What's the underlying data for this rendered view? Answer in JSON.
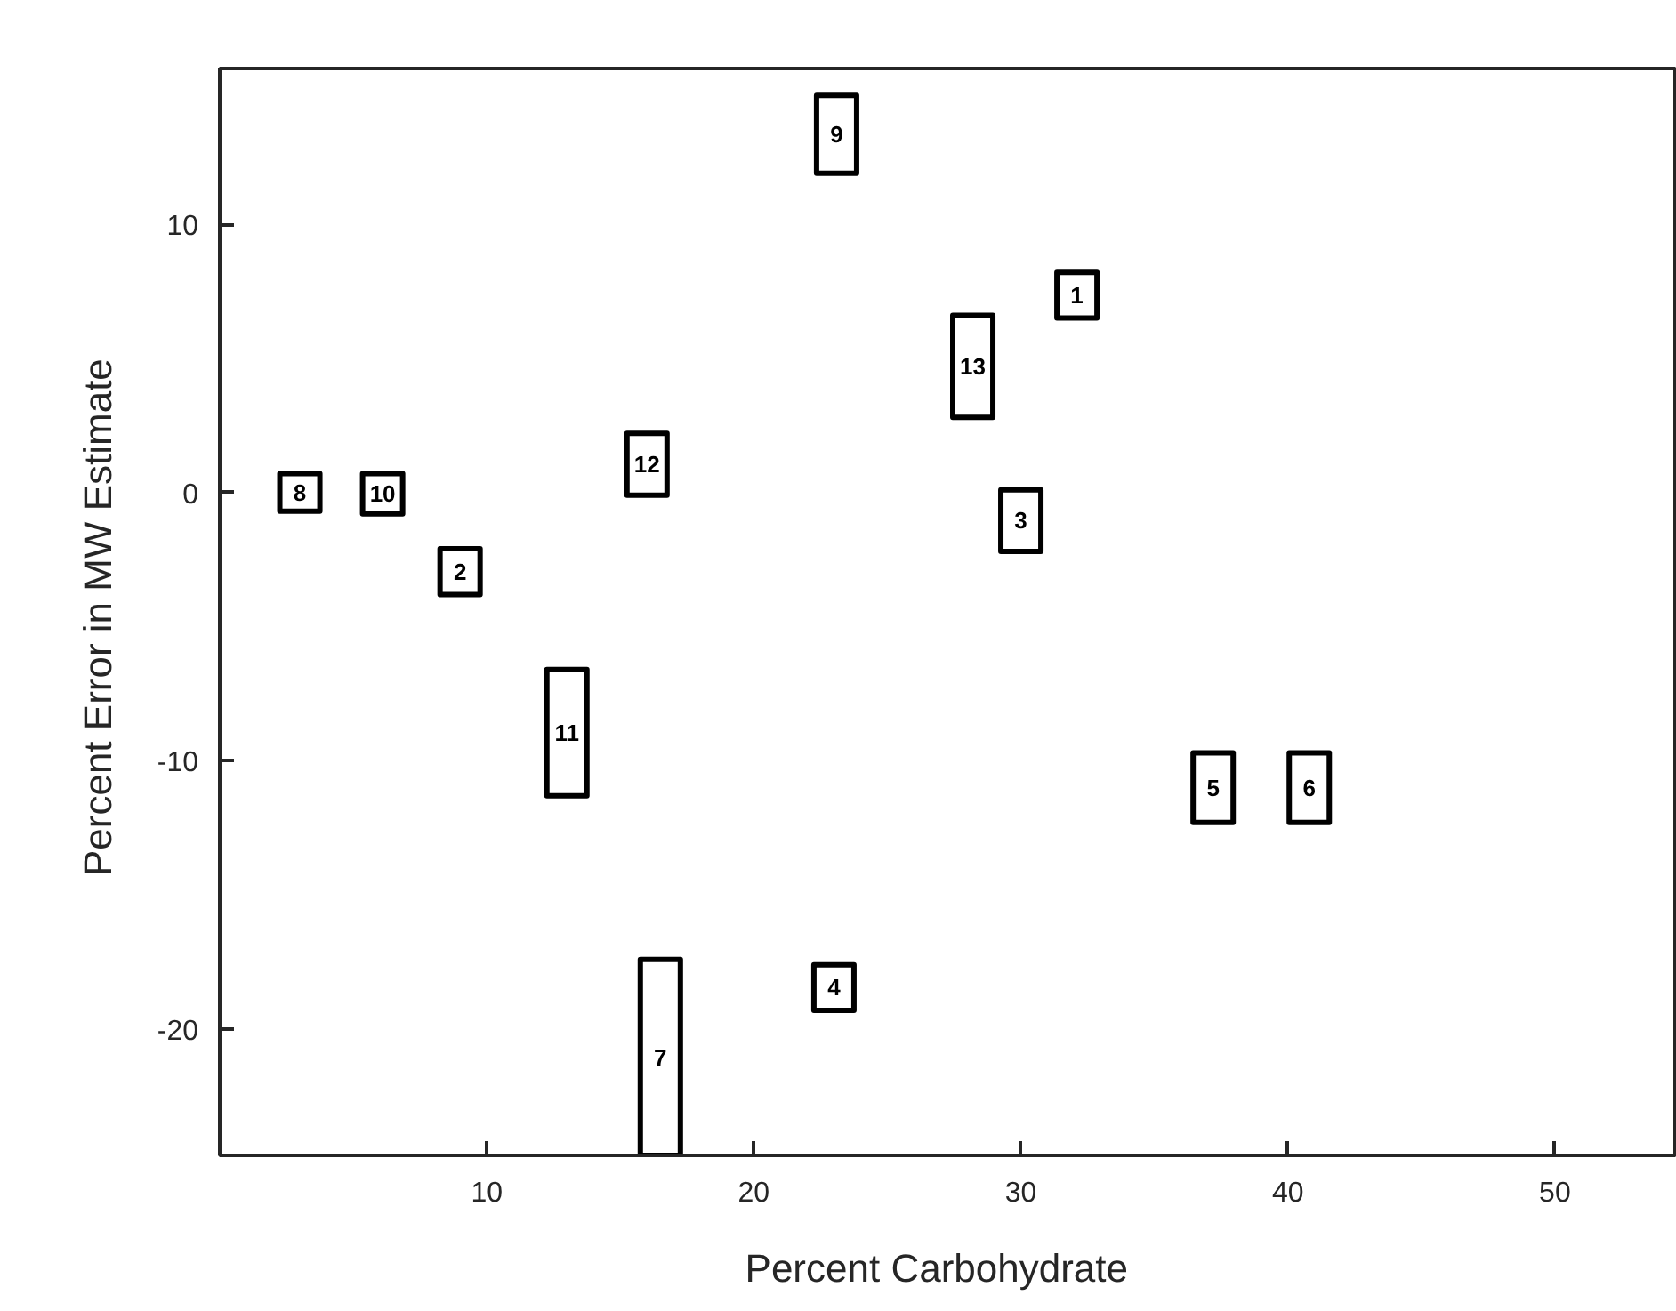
{
  "chart_data": {
    "type": "bar",
    "xlabel": "Percent   Carbohydrate",
    "ylabel": "Percent  Error in MW Estimate",
    "grid": false,
    "xlim": [
      0,
      54.5
    ],
    "ylim": [
      -24.7,
      15.8
    ],
    "xticks": [
      10,
      20,
      30,
      40,
      50
    ],
    "yticks": [
      10,
      0,
      -10,
      -20
    ],
    "x": [
      3.0,
      6.1,
      9.0,
      13.0,
      16.0,
      16.5,
      23.0,
      23.1,
      28.2,
      30.0,
      32.1,
      37.2,
      40.8
    ],
    "base": [
      -0.7,
      -0.8,
      -3.8,
      -11.3,
      -0.1,
      -24.7,
      -19.3,
      11.9,
      2.8,
      -2.2,
      6.5,
      -12.3,
      -12.3
    ],
    "values": [
      1.4,
      1.5,
      1.7,
      4.7,
      2.3,
      7.3,
      1.7,
      2.9,
      3.8,
      2.3,
      1.7,
      2.6,
      2.6
    ],
    "color": "#ffffff",
    "annotations": [
      "8",
      "10",
      "2",
      "11",
      "12",
      "7",
      "4",
      "9",
      "13",
      "3",
      "1",
      "5",
      "6"
    ]
  }
}
